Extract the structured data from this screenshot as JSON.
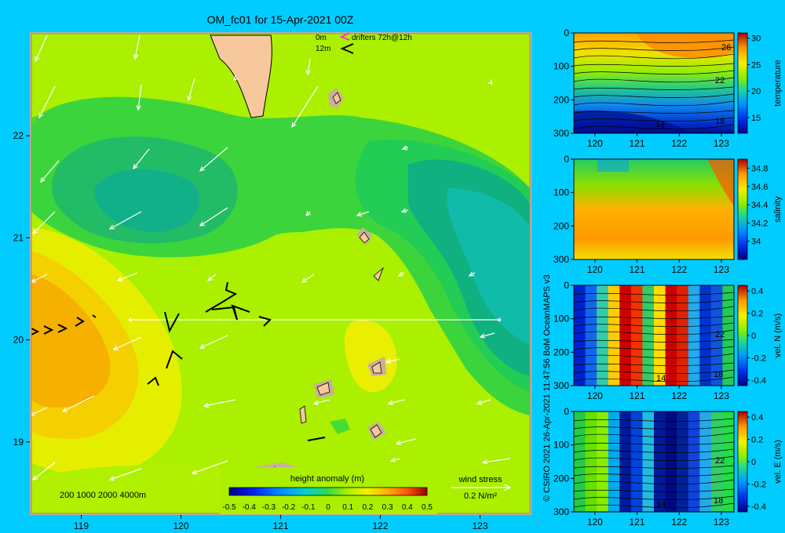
{
  "title": "OM_fc01 for 15-Apr-2021 00Z",
  "credit": "© CSIRO 2021  26-Apr-2021 11:47:56 BoM OceanMAPS v3",
  "colors": {
    "background": "#00ccff",
    "land": "#f7c89b",
    "shelf": "#c8b09a",
    "arrows": "#ffffff",
    "drifters": "#000000",
    "drifters_12m": "#ff33cc"
  },
  "map": {
    "x_ticks": [
      "119",
      "120",
      "121",
      "122",
      "123"
    ],
    "y_ticks": [
      "22",
      "21",
      "20",
      "19"
    ],
    "xlim": [
      118.5,
      123.5
    ],
    "ylim": [
      18.3,
      23.0
    ],
    "legend_drifters": {
      "line1_depth": "0m",
      "line2_depth": "12m",
      "label": "drifters 72h@12h"
    },
    "bathymetry_label": "200  1000  2000  4000m",
    "colorbar": {
      "label": "height anomaly (m)",
      "ticks": [
        "-0.5",
        "-0.4",
        "-0.3",
        "-0.2",
        "-0.1",
        "0",
        "0.1",
        "0.2",
        "0.3",
        "0.4",
        "0.5"
      ]
    },
    "wind_stress": {
      "title": "wind stress",
      "scale": "0.2 N/m²"
    }
  },
  "chart_data": [
    {
      "type": "heatmap",
      "title": "OM_fc01 for 15-Apr-2021 00Z",
      "colorbar_label": "height anomaly (m)",
      "xlim": [
        118.5,
        123.5
      ],
      "ylim": [
        18.3,
        23.0
      ],
      "clim": [
        -0.5,
        0.5
      ],
      "features": [
        {
          "kind": "low",
          "lon": 119.8,
          "lat": 21.2,
          "value": -0.25
        },
        {
          "kind": "low",
          "lon": 123.3,
          "lat": 20.6,
          "value": -0.3
        },
        {
          "kind": "high",
          "lon": 118.9,
          "lat": 19.8,
          "value": 0.28
        },
        {
          "kind": "high",
          "lon": 122.0,
          "lat": 19.8,
          "value": 0.13
        }
      ],
      "section_line": {
        "from_lon": 119.5,
        "to_lon": 123.3,
        "lat": 20.0
      }
    },
    {
      "type": "heatmap",
      "ylabel": "temperature",
      "x_ticks": [
        "120",
        "121",
        "122",
        "123"
      ],
      "y_ticks": [
        "0",
        "100",
        "200",
        "300"
      ],
      "colorbar_ticks": [
        "30",
        "25",
        "20",
        "15"
      ],
      "contour_labels": [
        "26",
        "22",
        "18",
        "14"
      ],
      "clim": [
        12,
        31
      ]
    },
    {
      "type": "heatmap",
      "ylabel": "salinity",
      "x_ticks": [
        "120",
        "121",
        "122",
        "123"
      ],
      "y_ticks": [
        "0",
        "100",
        "200",
        "300"
      ],
      "colorbar_ticks": [
        "34.8",
        "34.6",
        "34.4",
        "34.2",
        "34"
      ],
      "clim": [
        33.8,
        34.9
      ]
    },
    {
      "type": "heatmap",
      "ylabel": "vel. N (m/s)",
      "x_ticks": [
        "120",
        "121",
        "122",
        "123"
      ],
      "y_ticks": [
        "0",
        "100",
        "200",
        "300"
      ],
      "colorbar_ticks": [
        "0.4",
        "0.2",
        "0",
        "-0.2",
        "-0.4"
      ],
      "contour_labels": [
        "22",
        "18",
        "14"
      ],
      "clim": [
        -0.45,
        0.45
      ]
    },
    {
      "type": "heatmap",
      "ylabel": "vel. E (m/s)",
      "x_ticks": [
        "120",
        "121",
        "122",
        "123"
      ],
      "y_ticks": [
        "0",
        "100",
        "200",
        "300"
      ],
      "colorbar_ticks": [
        "0.4",
        "0.2",
        "0",
        "-0.2",
        "-0.4"
      ],
      "contour_labels": [
        "22",
        "18",
        "14"
      ],
      "clim": [
        -0.45,
        0.45
      ]
    }
  ]
}
